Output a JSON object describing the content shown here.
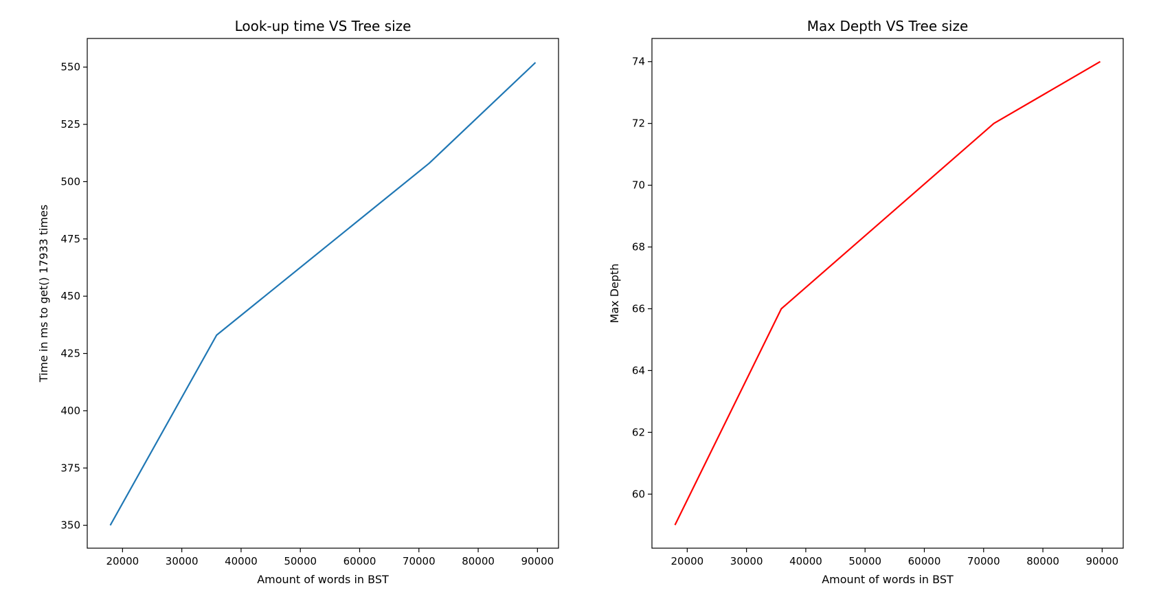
{
  "chart_data": [
    {
      "type": "line",
      "title": "Look-up time VS Tree size",
      "xlabel": "Amount of words in BST",
      "ylabel": "Time in ms to get() 17933 times",
      "x": [
        17933,
        35866,
        71732,
        89665
      ],
      "series": [
        {
          "values": [
            350,
            433,
            508,
            552
          ],
          "color": "#1f77b4"
        }
      ],
      "xlim": [
        14047,
        93552
      ],
      "ylim": [
        340,
        562.5
      ],
      "xticks": [
        20000,
        30000,
        40000,
        50000,
        60000,
        70000,
        80000,
        90000
      ],
      "xtick_labels": [
        "20000",
        "30000",
        "40000",
        "50000",
        "60000",
        "70000",
        "80000",
        "90000"
      ],
      "yticks": [
        350,
        375,
        400,
        425,
        450,
        475,
        500,
        525,
        550
      ],
      "ytick_labels": [
        "350",
        "375",
        "400",
        "425",
        "450",
        "475",
        "500",
        "525",
        "550"
      ],
      "grid": false
    },
    {
      "type": "line",
      "title": "Max Depth VS Tree size",
      "xlabel": "Amount of words in BST",
      "ylabel": "Max Depth",
      "x": [
        17933,
        35866,
        71732,
        89665
      ],
      "series": [
        {
          "values": [
            59,
            66,
            72,
            74
          ],
          "color": "#ff0000"
        }
      ],
      "xlim": [
        14047,
        93552
      ],
      "ylim": [
        58.25,
        74.75
      ],
      "xticks": [
        20000,
        30000,
        40000,
        50000,
        60000,
        70000,
        80000,
        90000
      ],
      "xtick_labels": [
        "20000",
        "30000",
        "40000",
        "50000",
        "60000",
        "70000",
        "80000",
        "90000"
      ],
      "yticks": [
        60,
        62,
        64,
        66,
        68,
        70,
        72,
        74
      ],
      "ytick_labels": [
        "60",
        "62",
        "64",
        "66",
        "68",
        "70",
        "72",
        "74"
      ],
      "grid": false
    }
  ]
}
